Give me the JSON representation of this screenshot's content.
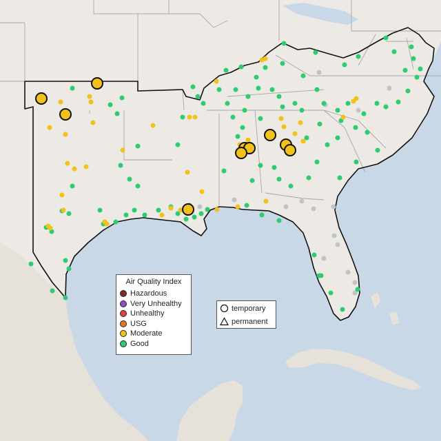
{
  "legend": {
    "title": "Air Quality Index",
    "items": [
      {
        "label": "Hazardous",
        "color": "#7e2a2a"
      },
      {
        "label": "Very Unhealthy",
        "color": "#8e4ec6"
      },
      {
        "label": "Unhealthy",
        "color": "#e2403a"
      },
      {
        "label": "USG",
        "color": "#e5761e"
      },
      {
        "label": "Moderate",
        "color": "#f2c21a"
      },
      {
        "label": "Good",
        "color": "#2ecc71"
      }
    ]
  },
  "monitor_types": {
    "items": [
      {
        "label": "temporary",
        "shape": "circle-icon"
      },
      {
        "label": "permanent",
        "shape": "triangle-icon"
      }
    ]
  },
  "colors": {
    "water": "#c9d8e6",
    "land": "#ede9e4",
    "state_border": "#a8a8a8",
    "region_outline": "#111111",
    "no_data": "#bfc4c8"
  }
}
